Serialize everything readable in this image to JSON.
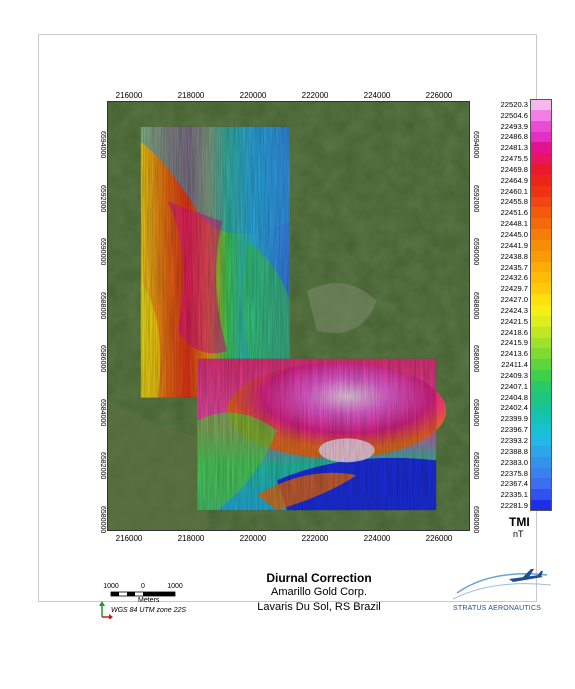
{
  "map": {
    "x_ticks": [
      "216000",
      "218000",
      "220000",
      "222000",
      "224000",
      "226000"
    ],
    "y_ticks": [
      "6594000",
      "6592000",
      "6590000",
      "6588000",
      "6586000",
      "6584000",
      "6582000",
      "6580000"
    ]
  },
  "legend": {
    "title": "TMI",
    "unit": "nT",
    "values": [
      "22520.3",
      "22504.6",
      "22493.9",
      "22486.8",
      "22481.3",
      "22475.5",
      "22469.8",
      "22464.9",
      "22460.1",
      "22455.8",
      "22451.6",
      "22448.1",
      "22445.0",
      "22441.9",
      "22438.8",
      "22435.7",
      "22432.6",
      "22429.7",
      "22427.0",
      "22424.3",
      "22421.5",
      "22418.6",
      "22415.9",
      "22413.6",
      "22411.4",
      "22409.3",
      "22407.1",
      "22404.8",
      "22402.4",
      "22399.9",
      "22396.7",
      "22393.2",
      "22388.8",
      "22383.0",
      "22375.8",
      "22367.4",
      "22335.1",
      "22281.9"
    ],
    "colors": [
      "#f7b8ee",
      "#f080e3",
      "#e94cd2",
      "#e22fc6",
      "#e3138f",
      "#e61560",
      "#ea1a2c",
      "#ee2418",
      "#ef3312",
      "#f0460f",
      "#f2590c",
      "#f36b09",
      "#f57c06",
      "#f78c05",
      "#f99c04",
      "#fbac05",
      "#fdbb07",
      "#ffca0a",
      "#fee00e",
      "#f7ef14",
      "#dcee1c",
      "#bfe823",
      "#9fe12b",
      "#7edb32",
      "#5dd53c",
      "#3dd04a",
      "#27ca64",
      "#1ec67f",
      "#17c39b",
      "#14c3b6",
      "#16c2d1",
      "#22b7e4",
      "#2ba6e9",
      "#3393ec",
      "#3a81ef",
      "#3c6ef1",
      "#3152ee",
      "#1c2fe6"
    ]
  },
  "title": {
    "line1": "Diurnal Correction",
    "line2": "Amarillo Gold Corp.",
    "line3": "Lavaris Du Sol, RS Brazil"
  },
  "scale": {
    "labels": [
      "1000",
      "0",
      "1000"
    ],
    "unit": "Meters",
    "crs": "WGS 84 UTM zone 22S"
  },
  "logo": {
    "text": "STRATUS AERONAUTICS"
  }
}
